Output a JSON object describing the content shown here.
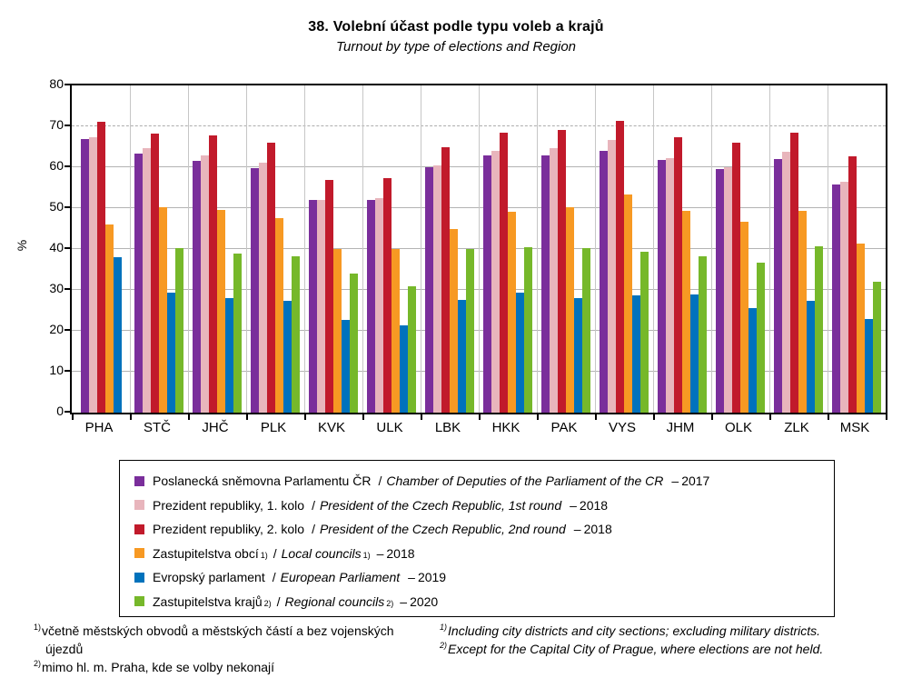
{
  "labels": {
    "separator": "/",
    "dash": "–"
  },
  "chart_data": {
    "type": "bar",
    "title": "38. Volební účast podle typu voleb a krajů",
    "subtitle": "Turnout by type of elections and Region",
    "ylabel": "%",
    "ylim": [
      0,
      80
    ],
    "ytick_step": 10,
    "dashed_gridline": 70,
    "grid": true,
    "legend_position": "bottom",
    "unit": "percent turnout",
    "categories": [
      "PHA",
      "STČ",
      "JHČ",
      "PLK",
      "KVK",
      "ULK",
      "LBK",
      "HKK",
      "PAK",
      "VYS",
      "JHM",
      "OLK",
      "ZLK",
      "MSK"
    ],
    "series": [
      {
        "id": "chamber-of-deputies-2017",
        "name_cz": "Poslanecká sněmovna Parlamentu ČR",
        "name_en": "Chamber of Deputies of the Parliament of the CR",
        "year": "2017",
        "color": "#7A2E9B",
        "values": [
          67.0,
          63.3,
          61.5,
          59.8,
          52.0,
          52.1,
          60.0,
          63.0,
          62.8,
          63.9,
          61.7,
          59.5,
          62.0,
          55.7
        ]
      },
      {
        "id": "president-1st-round-2018",
        "name_cz": "Prezident republiky, 1. kolo",
        "name_en": "President of the Czech Republic, 1st round",
        "year": "2018",
        "color": "#E8B5BC",
        "values": [
          67.4,
          64.6,
          62.9,
          61.2,
          52.1,
          52.5,
          60.5,
          64.1,
          64.7,
          66.7,
          62.3,
          60.1,
          63.7,
          56.5
        ]
      },
      {
        "id": "president-2nd-round-2018",
        "name_cz": "Prezident republiky, 2. kolo",
        "name_en": "President of the Czech Republic, 2nd round",
        "year": "2018",
        "color": "#C11A2B",
        "values": [
          71.1,
          68.3,
          67.8,
          65.9,
          57.0,
          57.4,
          64.8,
          68.5,
          69.2,
          71.4,
          67.4,
          66.0,
          68.4,
          62.7
        ]
      },
      {
        "id": "local-councils-2018",
        "name_cz": "Zastupitelstva obcí",
        "cz_sup": "1)",
        "name_en": "Local councils",
        "en_sup": "1)",
        "year": "2018",
        "color": "#F79923",
        "values": [
          46.1,
          50.3,
          49.6,
          47.5,
          40.0,
          39.9,
          45.0,
          49.2,
          50.2,
          53.3,
          49.4,
          46.6,
          49.4,
          41.3
        ]
      },
      {
        "id": "european-parliament-2019",
        "name_cz": "Evropský parlament",
        "name_en": "European Parliament",
        "year": "2019",
        "color": "#0072BC",
        "values": [
          37.9,
          29.3,
          28.1,
          27.3,
          22.6,
          21.3,
          27.6,
          29.4,
          27.9,
          28.7,
          29.0,
          25.6,
          27.4,
          22.9
        ]
      },
      {
        "id": "regional-councils-2020",
        "name_cz": "Zastupitelstva krajů",
        "cz_sup": "2)",
        "name_en": "Regional councils",
        "en_sup": "2)",
        "year": "2020",
        "color": "#76B82A",
        "values": [
          null,
          40.2,
          39.0,
          38.2,
          34.0,
          30.8,
          39.9,
          40.4,
          40.2,
          39.3,
          38.2,
          36.6,
          40.7,
          32.0
        ]
      }
    ]
  },
  "footnotes": {
    "cz": [
      {
        "sup": "1)",
        "text": "včetně městských obvodů a městských částí a bez vojenských újezdů"
      },
      {
        "sup": "2)",
        "text": "mimo hl. m. Praha, kde se volby nekonají"
      }
    ],
    "en": [
      {
        "sup": "1)",
        "text": "Including city districts and city sections; excluding military districts."
      },
      {
        "sup": "2)",
        "text": "Except for the Capital City of Prague, where elections are not held."
      }
    ]
  }
}
